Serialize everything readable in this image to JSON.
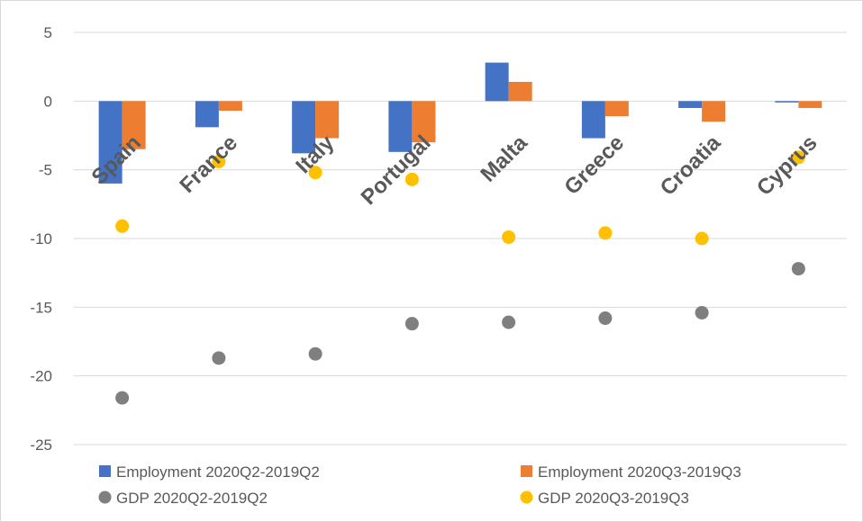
{
  "chart_data": {
    "type": "bar",
    "categories": [
      "Spain",
      "France",
      "Italy",
      "Portugal",
      "Malta",
      "Greece",
      "Croatia",
      "Cyprus"
    ],
    "series": [
      {
        "name": "Employment 2020Q2-2019Q2",
        "kind": "bar",
        "color": "#4472C4",
        "values": [
          -6.0,
          -1.9,
          -3.8,
          -3.7,
          2.8,
          -2.7,
          -0.5,
          -0.1
        ]
      },
      {
        "name": "Employment 2020Q3-2019Q3",
        "kind": "bar",
        "color": "#ED7D31",
        "values": [
          -3.5,
          -0.7,
          -2.7,
          -3.0,
          1.4,
          -1.1,
          -1.5,
          -0.5
        ]
      },
      {
        "name": "GDP 2020Q2-2019Q2",
        "kind": "marker",
        "color": "#7F7F7F",
        "values": [
          -21.6,
          -18.7,
          -18.4,
          -16.2,
          -16.1,
          -15.8,
          -15.4,
          -12.2
        ]
      },
      {
        "name": "GDP 2020Q3-2019Q3",
        "kind": "marker",
        "color": "#FFC000",
        "values": [
          -9.1,
          -4.4,
          -5.2,
          -5.7,
          -9.9,
          -9.6,
          -10.0,
          -4.1
        ]
      }
    ],
    "ylim": [
      -25,
      5
    ],
    "yticks": [
      5,
      0,
      -5,
      -10,
      -15,
      -20,
      -25
    ],
    "grid": true,
    "legend_position": "bottom"
  }
}
